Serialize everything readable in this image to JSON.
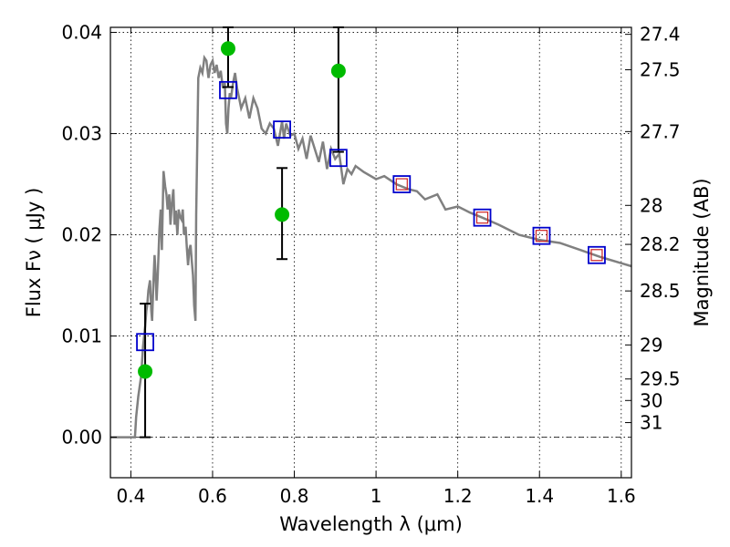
{
  "chart_data": {
    "type": "scatter",
    "xlabel": "Wavelength  λ (μm)",
    "ylabel": "Flux  Fν  ( μJy )",
    "y2label": "Magnitude (AB)",
    "xlim": [
      0.35,
      1.625
    ],
    "ylim": [
      -0.004,
      0.0405
    ],
    "grid": true,
    "x_ticks": [
      {
        "value": 0.4,
        "label": "0.4"
      },
      {
        "value": 0.6,
        "label": "0.6"
      },
      {
        "value": 0.8,
        "label": "0.8"
      },
      {
        "value": 1.0,
        "label": "1"
      },
      {
        "value": 1.2,
        "label": "1.2"
      },
      {
        "value": 1.4,
        "label": "1.4"
      },
      {
        "value": 1.6,
        "label": "1.6"
      }
    ],
    "y_ticks": [
      {
        "value": 0.0,
        "label": "0.00"
      },
      {
        "value": 0.01,
        "label": "0.01"
      },
      {
        "value": 0.02,
        "label": "0.02"
      },
      {
        "value": 0.03,
        "label": "0.03"
      },
      {
        "value": 0.04,
        "label": "0.04"
      }
    ],
    "mag_ticks": [
      {
        "value": 27.4,
        "label": "27.4"
      },
      {
        "value": 27.5,
        "label": "27.5"
      },
      {
        "value": 27.7,
        "label": "27.7"
      },
      {
        "value": 28,
        "label": "28"
      },
      {
        "value": 28.2,
        "label": "28.2"
      },
      {
        "value": 28.5,
        "label": "28.5"
      },
      {
        "value": 29,
        "label": "29"
      },
      {
        "value": 29.5,
        "label": "29.5"
      },
      {
        "value": 30,
        "label": "30"
      },
      {
        "value": 31,
        "label": "31"
      }
    ],
    "colors": {
      "model": "#808080",
      "observed": "#00bb00",
      "model_band": "#0000cc",
      "inner_box": "#cc2222",
      "errorbar": "#000000"
    },
    "series": [
      {
        "kind": "line",
        "x": [
          0.35,
          0.385,
          0.41,
          0.413,
          0.418,
          0.425,
          0.43,
          0.435,
          0.438,
          0.44,
          0.443,
          0.447,
          0.45,
          0.452,
          0.455,
          0.458,
          0.46,
          0.463,
          0.466,
          0.47,
          0.473,
          0.476,
          0.48,
          0.484,
          0.487,
          0.49,
          0.494,
          0.497,
          0.5,
          0.504,
          0.507,
          0.51,
          0.514,
          0.517,
          0.52,
          0.524,
          0.527,
          0.53,
          0.534,
          0.537,
          0.54,
          0.543,
          0.546,
          0.549,
          0.552,
          0.555,
          0.558,
          0.56,
          0.565,
          0.57,
          0.575,
          0.58,
          0.585,
          0.59,
          0.595,
          0.6,
          0.605,
          0.61,
          0.615,
          0.62,
          0.625,
          0.63,
          0.633,
          0.636,
          0.639,
          0.642,
          0.645,
          0.65,
          0.655,
          0.66,
          0.665,
          0.67,
          0.68,
          0.69,
          0.7,
          0.71,
          0.72,
          0.73,
          0.74,
          0.75,
          0.76,
          0.77,
          0.775,
          0.78,
          0.79,
          0.8,
          0.81,
          0.82,
          0.83,
          0.84,
          0.85,
          0.86,
          0.87,
          0.88,
          0.89,
          0.9,
          0.91,
          0.92,
          0.93,
          0.94,
          0.95,
          0.97,
          1.0,
          1.02,
          1.05,
          1.08,
          1.1,
          1.12,
          1.15,
          1.17,
          1.2,
          1.23,
          1.26,
          1.3,
          1.35,
          1.4,
          1.45,
          1.5,
          1.55,
          1.6,
          1.625
        ],
        "y": [
          0.0,
          0.0,
          0.0,
          0.002,
          0.004,
          0.006,
          0.009,
          0.011,
          0.0125,
          0.013,
          0.0145,
          0.0155,
          0.0125,
          0.0115,
          0.015,
          0.018,
          0.0165,
          0.0135,
          0.016,
          0.0205,
          0.0225,
          0.0185,
          0.0263,
          0.0248,
          0.024,
          0.0225,
          0.024,
          0.021,
          0.023,
          0.0245,
          0.021,
          0.0224,
          0.02,
          0.0225,
          0.0218,
          0.0215,
          0.0225,
          0.02,
          0.0208,
          0.0188,
          0.017,
          0.0185,
          0.019,
          0.0175,
          0.016,
          0.013,
          0.0115,
          0.022,
          0.0355,
          0.0365,
          0.036,
          0.0375,
          0.0372,
          0.0355,
          0.0368,
          0.0372,
          0.036,
          0.0368,
          0.0355,
          0.0362,
          0.0345,
          0.035,
          0.031,
          0.03,
          0.0325,
          0.034,
          0.0335,
          0.035,
          0.036,
          0.0345,
          0.0335,
          0.0325,
          0.0335,
          0.0315,
          0.0335,
          0.0325,
          0.0305,
          0.03,
          0.031,
          0.0305,
          0.0288,
          0.0312,
          0.0295,
          0.031,
          0.0298,
          0.03,
          0.0285,
          0.0295,
          0.0275,
          0.0298,
          0.0285,
          0.0272,
          0.0292,
          0.0265,
          0.0285,
          0.0275,
          0.028,
          0.025,
          0.0265,
          0.026,
          0.0268,
          0.0262,
          0.0255,
          0.0258,
          0.025,
          0.0245,
          0.0243,
          0.0235,
          0.024,
          0.0225,
          0.0228,
          0.0222,
          0.0217,
          0.021,
          0.02,
          0.0195,
          0.0192,
          0.0185,
          0.0178,
          0.0172,
          0.0169
        ],
        "color": "#808080"
      },
      {
        "kind": "model_band_points",
        "x": [
          0.435,
          0.638,
          0.77,
          0.908,
          1.063,
          1.26,
          1.405,
          1.54
        ],
        "y": [
          0.0094,
          0.0343,
          0.0304,
          0.0276,
          0.025,
          0.0217,
          0.0199,
          0.018
        ]
      },
      {
        "kind": "observed_points",
        "x": [
          0.435,
          0.638,
          0.77,
          0.908
        ],
        "y": [
          0.0065,
          0.0384,
          0.022,
          0.0362
        ],
        "err_lo": [
          0.0,
          0.0346,
          0.0176,
          0.0282
        ],
        "err_hi": [
          0.0132,
          0.0405,
          0.0266,
          0.0405
        ]
      }
    ]
  }
}
